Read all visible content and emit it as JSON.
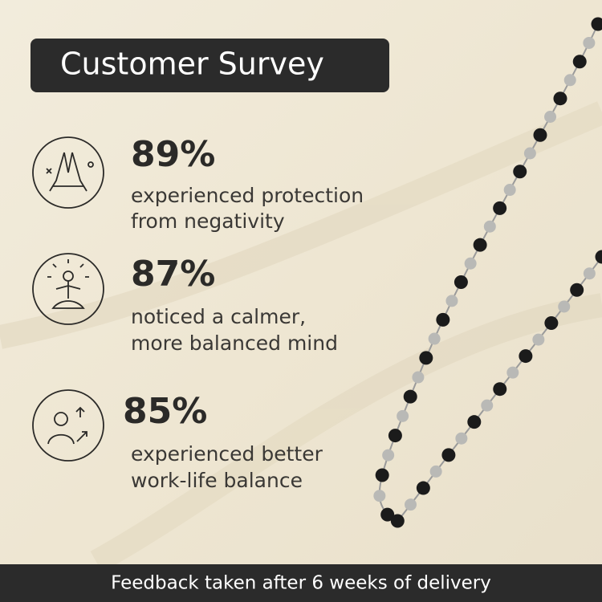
{
  "header": {
    "title": "Customer Survey"
  },
  "stats": [
    {
      "value": "89%",
      "lines": [
        "experienced protection",
        "from negativity"
      ]
    },
    {
      "value": "87%",
      "lines": [
        "noticed a calmer,",
        "more balanced mind"
      ]
    },
    {
      "value": "85%",
      "lines": [
        "experienced better",
        "work-life balance"
      ]
    }
  ],
  "footer": {
    "text": "Feedback taken after 6 weeks of delivery"
  }
}
